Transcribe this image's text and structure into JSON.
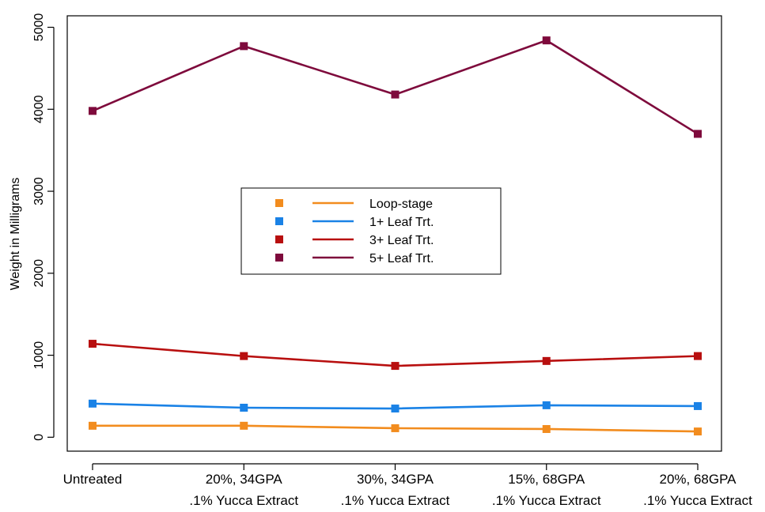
{
  "chart_data": {
    "type": "line",
    "title": "",
    "xlabel": "",
    "ylabel": "Weight in Milligrams",
    "categories": [
      [
        "Untreated",
        ""
      ],
      [
        "20%, 34GPA",
        ".1% Yucca Extract"
      ],
      [
        "30%, 34GPA",
        ".1% Yucca Extract"
      ],
      [
        "15%, 68GPA",
        ".1% Yucca Extract"
      ],
      [
        "20%, 68GPA",
        ".1% Yucca Extract"
      ]
    ],
    "yticks": [
      0,
      1000,
      2000,
      3000,
      4000,
      5000
    ],
    "ylim": [
      -170,
      5140
    ],
    "grid": false,
    "legend": "center",
    "series": [
      {
        "name": "Loop-stage",
        "color": "#f28c1e",
        "values": [
          140,
          140,
          110,
          100,
          70
        ]
      },
      {
        "name": "1+ Leaf Trt.",
        "color": "#1a82e6",
        "values": [
          410,
          360,
          350,
          390,
          380
        ]
      },
      {
        "name": "3+ Leaf Trt.",
        "color": "#b80f0f",
        "values": [
          1140,
          990,
          870,
          930,
          990
        ]
      },
      {
        "name": "5+ Leaf Trt.",
        "color": "#7e0a3c",
        "values": [
          3980,
          4770,
          4180,
          4840,
          3700
        ]
      }
    ]
  }
}
